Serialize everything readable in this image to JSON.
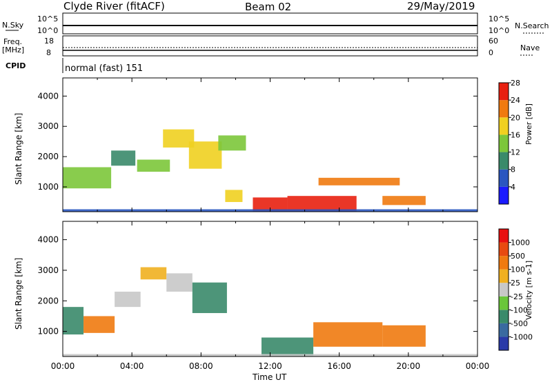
{
  "header": {
    "station": "Clyde River (fitACF)",
    "beam": "Beam 02",
    "date": "29/May/2019"
  },
  "strip_labels": {
    "nsky": "N.Sky",
    "nsky_top": "10^5",
    "nsky_bottom": "10^0",
    "nsearch": "N.Search",
    "nsearch_top": "10^5",
    "nsearch_bottom": "10^0",
    "freq": "Freq.",
    "freq_unit": "[MHz]",
    "freq_top": "18",
    "freq_bottom": "8",
    "nave": "Nave",
    "nave_top": "60",
    "nave_bottom": "0",
    "cpid": "CPID",
    "cpid_value": "normal (fast) 151"
  },
  "chart_data": [
    {
      "type": "heatmap",
      "name": "power",
      "ylabel": "Slant Range [km]",
      "yticks": [
        1000,
        2000,
        3000,
        4000
      ],
      "ylim": [
        180,
        4600
      ],
      "colorbar_label": "Power [dB]",
      "colorbar_ticks": [
        "4",
        "8",
        "12",
        "16",
        "20",
        "24",
        "28"
      ],
      "colors": [
        "#1a1aff",
        "#2a56c0",
        "#3a8a6a",
        "#7cc63a",
        "#f0d020",
        "#f07a10",
        "#e82010"
      ],
      "regions": [
        {
          "t0": 0.0,
          "t1": 2.8,
          "r0": 950,
          "r1": 1650,
          "level": 3
        },
        {
          "t0": 2.8,
          "t1": 4.2,
          "r0": 1700,
          "r1": 2200,
          "level": 2
        },
        {
          "t0": 4.3,
          "t1": 6.2,
          "r0": 1500,
          "r1": 1900,
          "level": 3
        },
        {
          "t0": 5.8,
          "t1": 7.6,
          "r0": 2300,
          "r1": 2900,
          "level": 4
        },
        {
          "t0": 7.3,
          "t1": 9.2,
          "r0": 1600,
          "r1": 2500,
          "level": 4
        },
        {
          "t0": 9.0,
          "t1": 10.6,
          "r0": 2200,
          "r1": 2700,
          "level": 3
        },
        {
          "t0": 9.4,
          "t1": 10.4,
          "r0": 500,
          "r1": 900,
          "level": 4
        },
        {
          "t0": 11.0,
          "t1": 13.0,
          "r0": 180,
          "r1": 650,
          "level": 6
        },
        {
          "t0": 13.0,
          "t1": 17.0,
          "r0": 180,
          "r1": 700,
          "level": 6
        },
        {
          "t0": 14.8,
          "t1": 19.5,
          "r0": 1050,
          "r1": 1300,
          "level": 5
        },
        {
          "t0": 18.5,
          "t1": 21.0,
          "r0": 400,
          "r1": 700,
          "level": 5
        },
        {
          "t0": 0.0,
          "t1": 24.0,
          "r0": 180,
          "r1": 260,
          "level": 1
        }
      ]
    },
    {
      "type": "heatmap",
      "name": "velocity",
      "ylabel": "Slant Range [km]",
      "yticks": [
        1000,
        2000,
        3000,
        4000
      ],
      "ylim": [
        180,
        4600
      ],
      "colorbar_label": "Velocity [m s-1]",
      "colorbar_ticks": [
        "1000",
        "500",
        "100",
        "25",
        "-25",
        "-100",
        "-500",
        "-1000"
      ],
      "colors": [
        "#2a3aa8",
        "#3a6aa0",
        "#3a8a6a",
        "#6ac63a",
        "#c8c8c8",
        "#f0b020",
        "#f07a10",
        "#e84a10",
        "#e81010"
      ],
      "regions": [
        {
          "t0": 0.0,
          "t1": 1.2,
          "r0": 900,
          "r1": 1800,
          "level": 2
        },
        {
          "t0": 1.2,
          "t1": 3.0,
          "r0": 950,
          "r1": 1500,
          "level": 6
        },
        {
          "t0": 3.0,
          "t1": 4.5,
          "r0": 1800,
          "r1": 2300,
          "level": 4
        },
        {
          "t0": 4.5,
          "t1": 6.0,
          "r0": 2700,
          "r1": 3100,
          "level": 5
        },
        {
          "t0": 6.0,
          "t1": 7.5,
          "r0": 2300,
          "r1": 2900,
          "level": 4
        },
        {
          "t0": 7.5,
          "t1": 9.5,
          "r0": 1600,
          "r1": 2600,
          "level": 2
        },
        {
          "t0": 11.5,
          "t1": 14.5,
          "r0": 180,
          "r1": 800,
          "level": 2
        },
        {
          "t0": 14.5,
          "t1": 18.5,
          "r0": 500,
          "r1": 1300,
          "level": 6
        },
        {
          "t0": 18.5,
          "t1": 21.0,
          "r0": 500,
          "r1": 1200,
          "level": 6
        },
        {
          "t0": 0.0,
          "t1": 24.0,
          "r0": 180,
          "r1": 260,
          "level": 4
        }
      ]
    }
  ],
  "x_axis": {
    "ticks": [
      "00:00",
      "04:00",
      "08:00",
      "12:00",
      "16:00",
      "20:00",
      "00:00"
    ],
    "label": "Time UT"
  }
}
